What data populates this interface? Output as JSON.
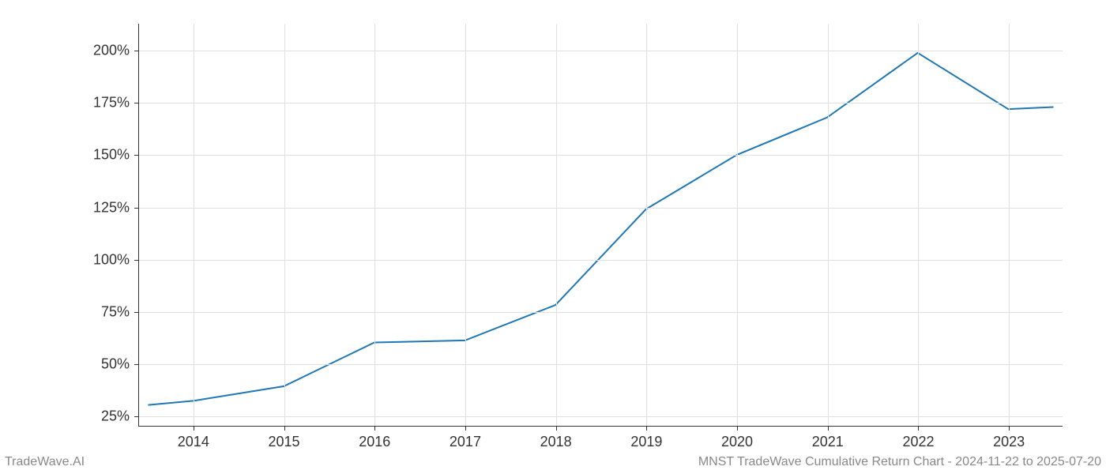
{
  "chart": {
    "type": "line",
    "x_values": [
      2013.5,
      2014,
      2015,
      2016,
      2017,
      2018,
      2019,
      2020,
      2021,
      2022,
      2023,
      2023.5
    ],
    "y_values": [
      30,
      32,
      39,
      60,
      61,
      78,
      124,
      150,
      168,
      199,
      172,
      173
    ],
    "line_color": "#1f77b4",
    "line_width": 2,
    "background_color": "#ffffff",
    "grid_color": "#e0e0e0",
    "axis_color": "#333333",
    "x_ticks": [
      2014,
      2015,
      2016,
      2017,
      2018,
      2019,
      2020,
      2021,
      2022,
      2023
    ],
    "x_tick_labels": [
      "2014",
      "2015",
      "2016",
      "2017",
      "2018",
      "2019",
      "2020",
      "2021",
      "2022",
      "2023"
    ],
    "y_ticks": [
      25,
      50,
      75,
      100,
      125,
      150,
      175,
      200
    ],
    "y_tick_labels": [
      "25%",
      "50%",
      "75%",
      "100%",
      "125%",
      "150%",
      "175%",
      "200%"
    ],
    "xlim": [
      2013.4,
      2023.6
    ],
    "ylim": [
      20,
      213
    ],
    "tick_fontsize": 18,
    "footer_fontsize": 16,
    "footer_color": "#888888"
  },
  "footer": {
    "left": "TradeWave.AI",
    "right": "MNST TradeWave Cumulative Return Chart - 2024-11-22 to 2025-07-20"
  }
}
